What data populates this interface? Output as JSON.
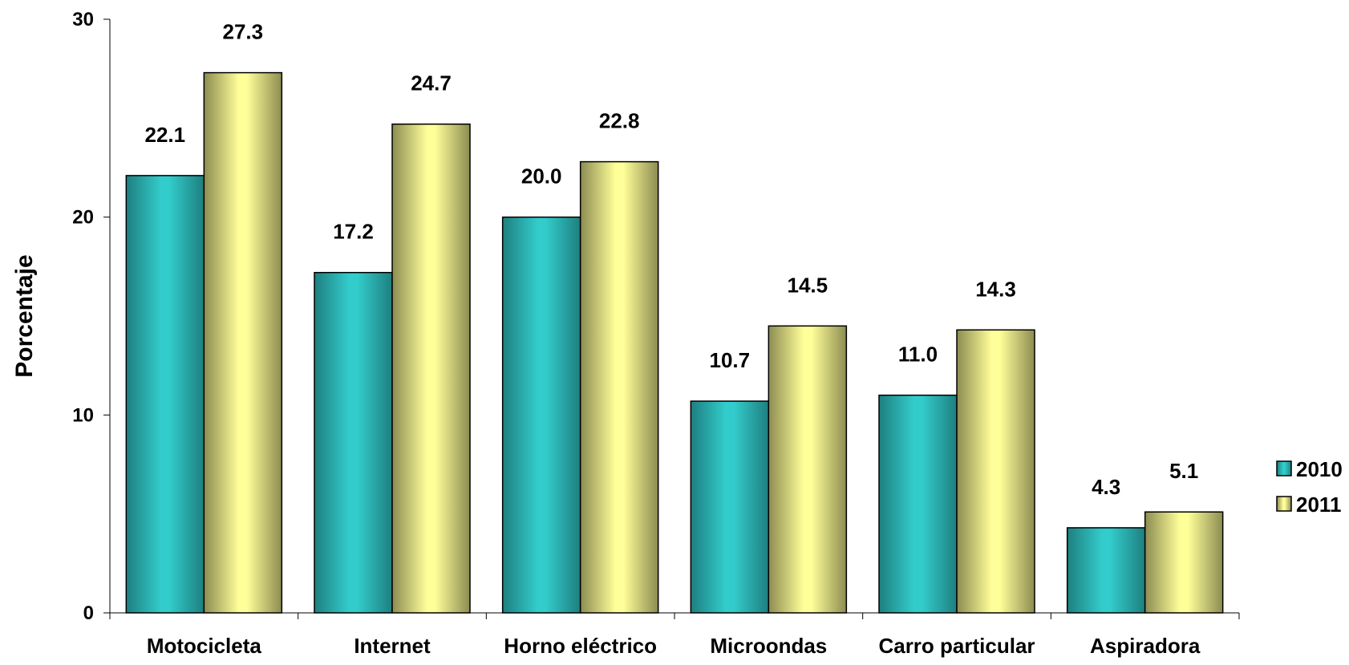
{
  "chart_data": {
    "type": "bar",
    "title": "",
    "xlabel": "",
    "ylabel": "Porcentaje",
    "ylim": [
      0,
      30
    ],
    "y_ticks": [
      0,
      10,
      20,
      30
    ],
    "y_tick_labels": [
      "0",
      "10",
      "20",
      "30"
    ],
    "categories": [
      "Motocicleta",
      "Internet",
      "Horno eléctrico",
      "Microondas",
      "Carro particular",
      "Aspiradora"
    ],
    "series": [
      {
        "name": "2010",
        "values": [
          22.1,
          17.2,
          20.0,
          10.7,
          11.0,
          4.3
        ],
        "labels": [
          "22.1",
          "17.2",
          "20.0",
          "10.7",
          "11.0",
          "4.3"
        ],
        "color_light": "#33cccc",
        "color_dark": "#1e7f7f"
      },
      {
        "name": "2011",
        "values": [
          27.3,
          24.7,
          22.8,
          14.5,
          14.3,
          5.1
        ],
        "labels": [
          "27.3",
          "24.7",
          "22.8",
          "14.5",
          "14.3",
          "5.1"
        ],
        "color_light": "#ffff99",
        "color_dark": "#8c8c52"
      }
    ],
    "legend_position": "right",
    "grid": false
  }
}
